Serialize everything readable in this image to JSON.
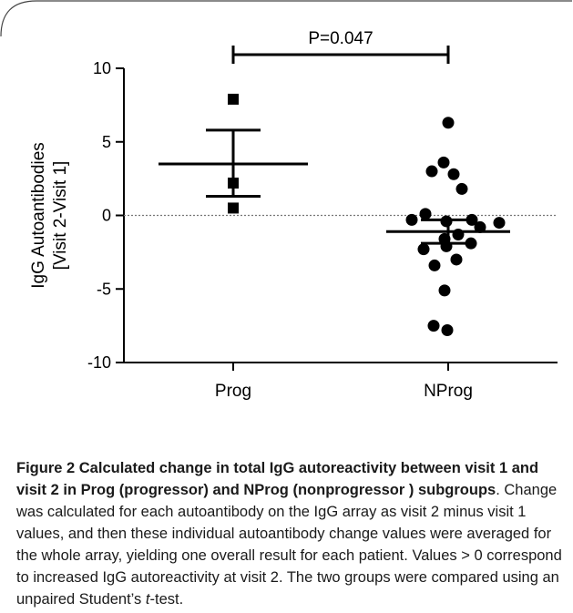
{
  "chart_data": {
    "type": "scatter",
    "categories": [
      "Prog",
      "NProg"
    ],
    "ylabel_line1": "IgG Autoantibodies",
    "ylabel_line2": "[Visit 2-Visit 1]",
    "ylim": [
      -10,
      10
    ],
    "yticks": [
      "10",
      "5",
      "0",
      "-5",
      "-10"
    ],
    "ytick_values": [
      10,
      5,
      0,
      -5,
      -10
    ],
    "reference_line_y": 0,
    "groups": [
      {
        "category": "Prog",
        "marker": "square",
        "points": [
          7.9,
          2.2,
          0.5
        ],
        "mean": 3.5,
        "sem_upper": 5.8,
        "sem_lower": 1.3
      },
      {
        "category": "NProg",
        "marker": "circle",
        "points": [
          6.3,
          3.6,
          3.0,
          2.8,
          1.8,
          0.1,
          -0.3,
          -0.4,
          -0.5,
          -0.3,
          -0.8,
          -1.3,
          -1.6,
          -2.3,
          -2.1,
          -1.9,
          -3.4,
          -3.0,
          -5.1,
          -7.5,
          -7.8
        ],
        "mean": -1.1,
        "sem_upper": -0.3,
        "sem_lower": -1.9
      }
    ],
    "significance_label": "P=0.047"
  },
  "caption": {
    "title": "Figure 2 Calculated change in total IgG autoreactivity between visit 1 and visit 2 in Prog (progressor) and NProg (nonprogressor ) subgroups",
    "body_pre": ". Change was calculated for each autoantibody on the IgG array as visit 2 minus visit 1 values, and then these individual autoantibody change values were averaged for the whole array, yielding one overall result for each patient. Values > 0 correspond to increased IgG autoreactivity at visit 2. The two groups were compared using an unpaired Student’s ",
    "body_italic": "t",
    "body_post": "-test."
  }
}
